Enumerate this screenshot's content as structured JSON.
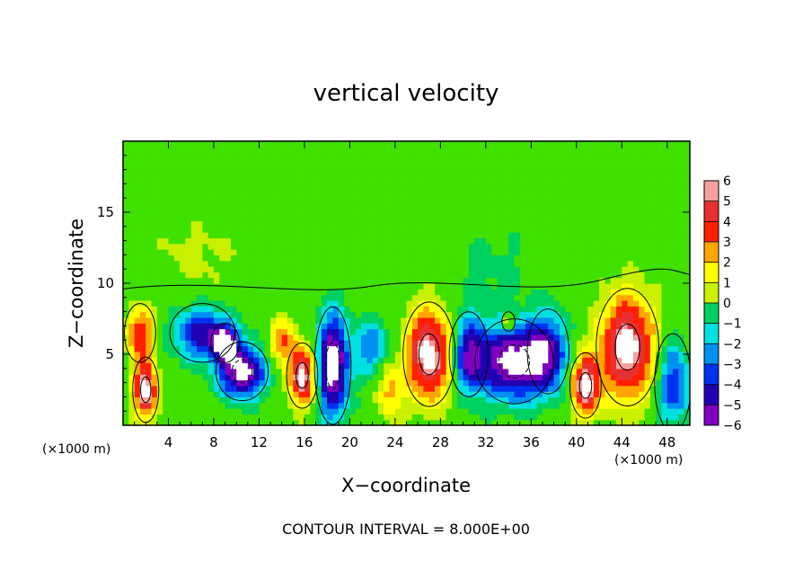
{
  "chart_data": {
    "type": "heatmap",
    "title": "vertical velocity",
    "xlabel": "X−coordinate",
    "ylabel": "Z−coordinate",
    "x_unit_left": "(×1000 m)",
    "x_unit_right": "(×1000 m)",
    "footer": "CONTOUR INTERVAL = 8.000E+00",
    "xlim": [
      0,
      50
    ],
    "ylim": [
      0,
      20
    ],
    "x_ticks": [
      4,
      8,
      12,
      16,
      20,
      24,
      28,
      32,
      36,
      40,
      44,
      48
    ],
    "y_ticks": [
      5,
      10,
      15
    ],
    "colorbar": {
      "levels": [
        6,
        5,
        4,
        3,
        2,
        1,
        0,
        -1,
        -2,
        -3,
        -4,
        -5,
        -6
      ],
      "colors": [
        "#f4a0a0",
        "#e83030",
        "#ff2000",
        "#ffa500",
        "#ffff00",
        "#c8f000",
        "#40e000",
        "#00d060",
        "#00e0e0",
        "#0090f0",
        "#0030f0",
        "#2000b0",
        "#8000c0"
      ]
    },
    "features": [
      {
        "kind": "updraft",
        "x": 1.5,
        "z": 6.5,
        "sx": 1.2,
        "sz": 1.8,
        "amp": 4.5
      },
      {
        "kind": "updraft",
        "x": 2.0,
        "z": 2.5,
        "sx": 1.0,
        "sz": 2.0,
        "amp": 6.8
      },
      {
        "kind": "downdraft",
        "x": 7.0,
        "z": 6.5,
        "sx": 2.5,
        "sz": 1.8,
        "amp": -4.6
      },
      {
        "kind": "downdraft",
        "x": 9.0,
        "z": 5.8,
        "sx": 1.1,
        "sz": 1.2,
        "amp": -5.0
      },
      {
        "kind": "downdraft",
        "x": 10.5,
        "z": 3.8,
        "sx": 2.0,
        "sz": 1.8,
        "amp": -6.7
      },
      {
        "kind": "updraft",
        "x": 14.0,
        "z": 6.0,
        "sx": 1.2,
        "sz": 1.5,
        "amp": 3.5
      },
      {
        "kind": "updraft",
        "x": 15.8,
        "z": 3.5,
        "sx": 1.2,
        "sz": 2.0,
        "amp": 6.8
      },
      {
        "kind": "downdraft",
        "x": 18.5,
        "z": 4.2,
        "sx": 1.4,
        "sz": 3.6,
        "amp": -6.8
      },
      {
        "kind": "downdraft",
        "x": 22.0,
        "z": 5.5,
        "sx": 1.5,
        "sz": 2.0,
        "amp": -3.0
      },
      {
        "kind": "updraft",
        "x": 23.5,
        "z": 2.5,
        "sx": 1.0,
        "sz": 2.0,
        "amp": 3.0
      },
      {
        "kind": "updraft",
        "x": 27.0,
        "z": 5.0,
        "sx": 2.0,
        "sz": 3.2,
        "amp": 6.8
      },
      {
        "kind": "downdraft",
        "x": 30.5,
        "z": 5.0,
        "sx": 1.5,
        "sz": 2.6,
        "amp": -4.8
      },
      {
        "kind": "downdraft",
        "x": 34.5,
        "z": 4.5,
        "sx": 3.0,
        "sz": 2.6,
        "amp": -6.8
      },
      {
        "kind": "downdraft",
        "x": 37.5,
        "z": 5.2,
        "sx": 1.6,
        "sz": 2.6,
        "amp": -4.0
      },
      {
        "kind": "updraft",
        "x": 34.0,
        "z": 7.3,
        "sx": 0.5,
        "sz": 0.6,
        "amp": 4.0
      },
      {
        "kind": "updraft",
        "x": 40.8,
        "z": 2.8,
        "sx": 1.2,
        "sz": 2.0,
        "amp": 6.8
      },
      {
        "kind": "updraft",
        "x": 44.5,
        "z": 5.5,
        "sx": 2.4,
        "sz": 3.6,
        "amp": 6.8
      },
      {
        "kind": "downdraft",
        "x": 48.5,
        "z": 3.0,
        "sx": 1.4,
        "sz": 3.0,
        "amp": -4.0
      },
      {
        "kind": "updraft",
        "x": 6.5,
        "z": 12.0,
        "sx": 4.0,
        "sz": 2.5,
        "amp": 1.0
      },
      {
        "kind": "downdraft",
        "x": 32.5,
        "z": 11.0,
        "sx": 3.5,
        "sz": 3.0,
        "amp": -0.9
      }
    ]
  }
}
